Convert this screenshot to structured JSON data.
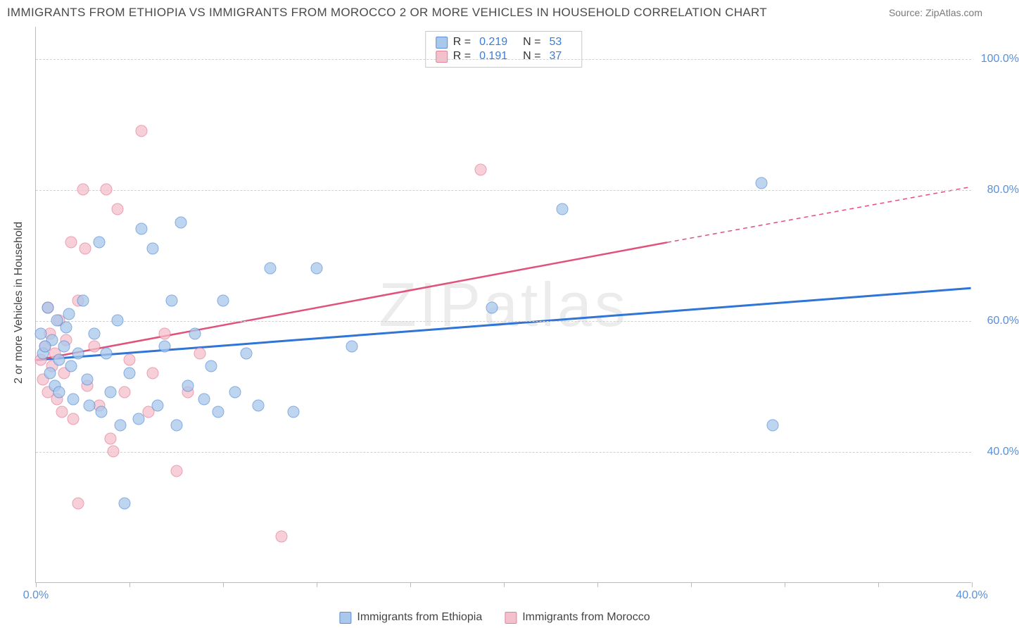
{
  "title": "IMMIGRANTS FROM ETHIOPIA VS IMMIGRANTS FROM MOROCCO 2 OR MORE VEHICLES IN HOUSEHOLD CORRELATION CHART",
  "source": "Source: ZipAtlas.com",
  "watermark": "ZIPatlas",
  "y_axis_title": "2 or more Vehicles in Household",
  "chart": {
    "type": "scatter-correlation",
    "background_color": "#ffffff",
    "grid_color": "#d0d0d0",
    "axis_color": "#bbbbbb",
    "tick_label_color": "#5b8fd6",
    "xlim": [
      0,
      40
    ],
    "ylim": [
      20,
      105
    ],
    "x_ticks": [
      0,
      4,
      8,
      12,
      16,
      20,
      24,
      28,
      32,
      36,
      40
    ],
    "x_tick_labels": {
      "0": "0.0%",
      "40": "40.0%"
    },
    "y_grid": [
      40,
      60,
      80,
      100
    ],
    "y_tick_labels": {
      "40": "40.0%",
      "60": "60.0%",
      "80": "80.0%",
      "100": "100.0%"
    },
    "marker_size": 17,
    "marker_opacity": 0.75
  },
  "series": {
    "ethiopia": {
      "label": "Immigrants from Ethiopia",
      "fill_color": "#a9c8ec",
      "stroke_color": "#5b8fd6",
      "trend_color": "#2f75d6",
      "trend_width": 3,
      "R": "0.219",
      "N": "53",
      "trend": {
        "x1": 0,
        "y1": 54,
        "x2": 40,
        "y2": 65
      },
      "points": [
        [
          0.2,
          58
        ],
        [
          0.3,
          55
        ],
        [
          0.5,
          62
        ],
        [
          0.6,
          52
        ],
        [
          0.7,
          57
        ],
        [
          0.8,
          50
        ],
        [
          0.9,
          60
        ],
        [
          1.0,
          54
        ],
        [
          1.2,
          56
        ],
        [
          1.3,
          59
        ],
        [
          1.5,
          53
        ],
        [
          1.6,
          48
        ],
        [
          1.8,
          55
        ],
        [
          2.0,
          63
        ],
        [
          2.2,
          51
        ],
        [
          2.5,
          58
        ],
        [
          2.7,
          72
        ],
        [
          2.8,
          46
        ],
        [
          3.0,
          55
        ],
        [
          3.2,
          49
        ],
        [
          3.5,
          60
        ],
        [
          3.6,
          44
        ],
        [
          3.8,
          32
        ],
        [
          4.0,
          52
        ],
        [
          4.4,
          45
        ],
        [
          4.5,
          74
        ],
        [
          5.0,
          71
        ],
        [
          5.2,
          47
        ],
        [
          5.5,
          56
        ],
        [
          5.8,
          63
        ],
        [
          6.2,
          75
        ],
        [
          6.0,
          44
        ],
        [
          6.5,
          50
        ],
        [
          6.8,
          58
        ],
        [
          7.2,
          48
        ],
        [
          7.5,
          53
        ],
        [
          7.8,
          46
        ],
        [
          8.0,
          63
        ],
        [
          8.5,
          49
        ],
        [
          9.0,
          55
        ],
        [
          9.5,
          47
        ],
        [
          10.0,
          68
        ],
        [
          11.0,
          46
        ],
        [
          12.0,
          68
        ],
        [
          13.5,
          56
        ],
        [
          19.5,
          62
        ],
        [
          22.5,
          77
        ],
        [
          31.0,
          81
        ],
        [
          31.5,
          44
        ],
        [
          1.0,
          49
        ],
        [
          1.4,
          61
        ],
        [
          2.3,
          47
        ],
        [
          0.4,
          56
        ]
      ]
    },
    "morocco": {
      "label": "Immigrants from Morocco",
      "fill_color": "#f4c0cb",
      "stroke_color": "#e57f9a",
      "trend_color": "#e0517b",
      "trend_width": 2.5,
      "R": "0.191",
      "N": "37",
      "trend_solid": {
        "x1": 0,
        "y1": 54,
        "x2": 27,
        "y2": 72
      },
      "trend_dash": {
        "x1": 27,
        "y1": 72,
        "x2": 40,
        "y2": 80.5
      },
      "points": [
        [
          0.2,
          54
        ],
        [
          0.3,
          51
        ],
        [
          0.4,
          56
        ],
        [
          0.5,
          49
        ],
        [
          0.6,
          58
        ],
        [
          0.7,
          53
        ],
        [
          0.8,
          55
        ],
        [
          0.9,
          48
        ],
        [
          1.0,
          60
        ],
        [
          1.2,
          52
        ],
        [
          1.5,
          72
        ],
        [
          1.6,
          45
        ],
        [
          1.8,
          63
        ],
        [
          2.0,
          80
        ],
        [
          2.2,
          50
        ],
        [
          2.5,
          56
        ],
        [
          2.7,
          47
        ],
        [
          3.0,
          80
        ],
        [
          3.2,
          42
        ],
        [
          3.5,
          77
        ],
        [
          3.8,
          49
        ],
        [
          4.0,
          54
        ],
        [
          4.5,
          89
        ],
        [
          4.8,
          46
        ],
        [
          5.0,
          52
        ],
        [
          5.5,
          58
        ],
        [
          6.0,
          37
        ],
        [
          6.5,
          49
        ],
        [
          7.0,
          55
        ],
        [
          1.8,
          32
        ],
        [
          1.1,
          46
        ],
        [
          1.3,
          57
        ],
        [
          0.5,
          62
        ],
        [
          19.0,
          83
        ],
        [
          10.5,
          27
        ],
        [
          2.1,
          71
        ],
        [
          3.3,
          40
        ]
      ]
    }
  },
  "legend_top": {
    "rows": [
      {
        "series": "ethiopia",
        "r_label": "R =",
        "n_label": "N ="
      },
      {
        "series": "morocco",
        "r_label": "R =",
        "n_label": "N ="
      }
    ]
  }
}
